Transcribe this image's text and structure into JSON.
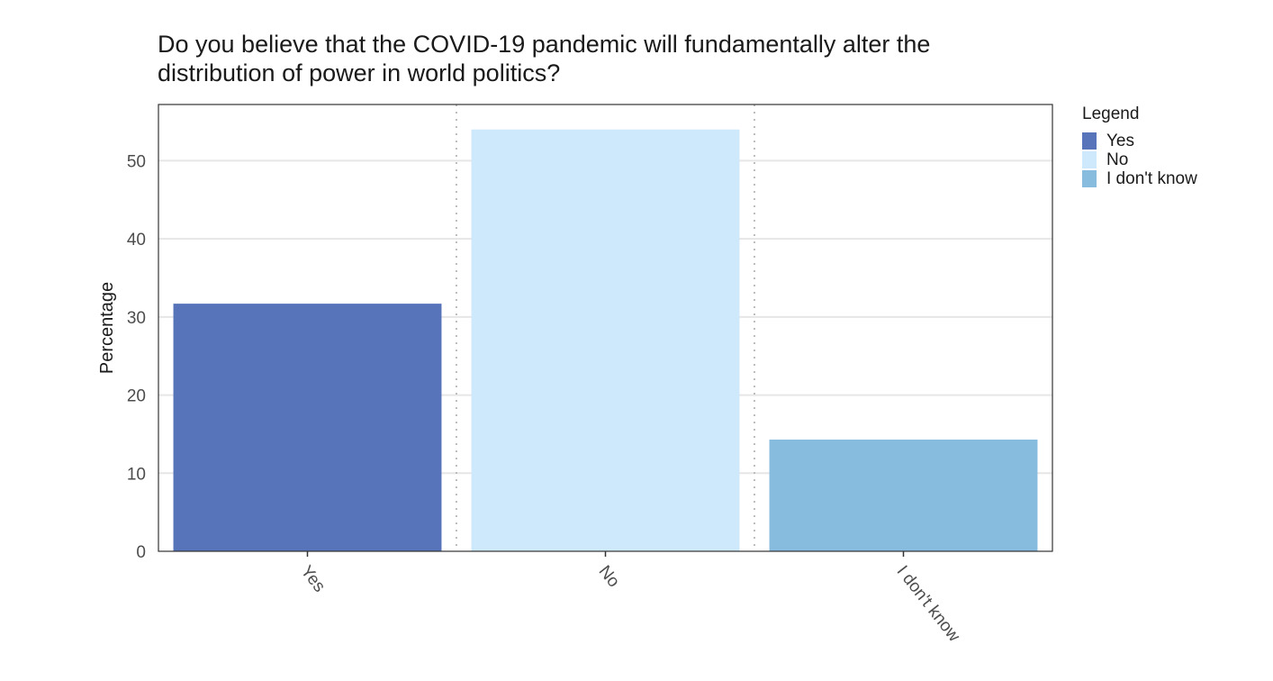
{
  "chart_data": {
    "type": "bar",
    "title": [
      "Do you believe that the COVID-19 pandemic will fundamentally alter the",
      "distribution of power in world politics?"
    ],
    "xlabel": "",
    "ylabel": "Percentage",
    "categories": [
      "Yes",
      "No",
      "I don't know"
    ],
    "values": [
      31.7,
      54.0,
      14.3
    ],
    "colors": [
      "#5773ba",
      "#cde9fb",
      "#87bcdf"
    ],
    "ylim": [
      0,
      57.2
    ],
    "yticks": [
      0,
      10,
      20,
      30,
      40,
      50
    ],
    "grid": true,
    "legend": {
      "title": "Legend",
      "position": "right",
      "entries": [
        "Yes",
        "No",
        "I don't know"
      ]
    }
  }
}
